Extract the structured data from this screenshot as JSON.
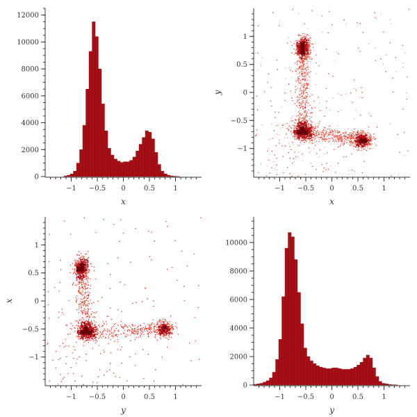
{
  "colors": {
    "hist": "#a50f15",
    "hist_edge": "#8b0a10",
    "dense": "#67000d",
    "mid": "#b30e14",
    "light": "#e0402a",
    "axis": "#333333"
  },
  "chart_data": [
    {
      "panel": "top-left",
      "type": "bar",
      "subtype": "histogram",
      "xlabel": "x",
      "ylabel": "",
      "xlim": [
        -1.5,
        1.5
      ],
      "ylim": [
        0,
        12500
      ],
      "xticks": [
        -1,
        -0.5,
        0,
        0.5,
        1
      ],
      "xtick_labels": [
        "−1",
        "−0.5",
        "0",
        "0.5",
        "1"
      ],
      "yticks": [
        0,
        2000,
        4000,
        6000,
        8000,
        10000,
        12000
      ],
      "ytick_labels": [
        "0",
        "2000",
        "4000",
        "6000",
        "8000",
        "10000",
        "12000"
      ],
      "bin_width": 0.06,
      "bins": [
        -1.14,
        -1.08,
        -1.02,
        -0.96,
        -0.9,
        -0.84,
        -0.78,
        -0.72,
        -0.66,
        -0.6,
        -0.54,
        -0.48,
        -0.42,
        -0.36,
        -0.3,
        -0.24,
        -0.18,
        -0.12,
        -0.06,
        0.0,
        0.06,
        0.12,
        0.18,
        0.24,
        0.3,
        0.36,
        0.42,
        0.48,
        0.54,
        0.6,
        0.66,
        0.72,
        0.78,
        0.84,
        0.9,
        0.96,
        1.02
      ],
      "values": [
        50,
        100,
        200,
        400,
        1000,
        2000,
        3800,
        6500,
        9300,
        11500,
        10400,
        8000,
        5400,
        3400,
        2100,
        1600,
        1300,
        1150,
        1050,
        1100,
        1100,
        1200,
        1450,
        1900,
        2400,
        2900,
        3400,
        3300,
        2800,
        1800,
        900,
        400,
        200,
        100,
        50,
        20,
        10
      ]
    },
    {
      "panel": "top-right",
      "type": "scatter",
      "subtype": "density",
      "xlabel": "x",
      "ylabel": "y",
      "xlim": [
        -1.5,
        1.5
      ],
      "ylim": [
        -1.5,
        1.5
      ],
      "xticks": [
        -1,
        -0.5,
        0,
        0.5,
        1
      ],
      "xtick_labels": [
        "−1",
        "−0.5",
        "0",
        "0.5",
        "1"
      ],
      "yticks": [
        -1,
        -0.5,
        0,
        0.5,
        1
      ],
      "ytick_labels": [
        "−1",
        "−0.5",
        "0",
        "0.5",
        "1"
      ],
      "clusters": [
        {
          "x": -0.55,
          "y": 0.8,
          "weight": 0.25
        },
        {
          "x": -0.55,
          "y": -0.7,
          "weight": 0.35
        },
        {
          "x": 0.6,
          "y": -0.85,
          "weight": 0.25
        }
      ]
    },
    {
      "panel": "bottom-left",
      "type": "scatter",
      "subtype": "density",
      "xlabel": "y",
      "ylabel": "x",
      "xlim": [
        -1.5,
        1.5
      ],
      "ylim": [
        -1.5,
        1.5
      ],
      "xticks": [
        -1,
        -0.5,
        0,
        0.5,
        1
      ],
      "xtick_labels": [
        "−1",
        "−0.5",
        "0",
        "0.5",
        "1"
      ],
      "yticks": [
        -1,
        -0.5,
        0,
        0.5,
        1
      ],
      "ytick_labels": [
        "−1",
        "−0.5",
        "0",
        "0.5",
        "1"
      ],
      "clusters": [
        {
          "x": -0.8,
          "y": 0.6,
          "weight": 0.25
        },
        {
          "x": -0.7,
          "y": -0.55,
          "weight": 0.35
        },
        {
          "x": 0.8,
          "y": -0.5,
          "weight": 0.25
        }
      ]
    },
    {
      "panel": "bottom-right",
      "type": "bar",
      "subtype": "histogram",
      "xlabel": "y",
      "ylabel": "",
      "xlim": [
        -1.5,
        1.5
      ],
      "ylim": [
        0,
        11800
      ],
      "xticks": [
        -1,
        -0.5,
        0,
        0.5,
        1
      ],
      "xtick_labels": [
        "−1",
        "−0.5",
        "0",
        "0.5",
        "1"
      ],
      "yticks": [
        0,
        2000,
        4000,
        6000,
        8000,
        10000
      ],
      "ytick_labels": [
        "0",
        "2000",
        "4000",
        "6000",
        "8000",
        "10000"
      ],
      "bin_width": 0.06,
      "bins": [
        -1.5,
        -1.44,
        -1.38,
        -1.32,
        -1.26,
        -1.2,
        -1.14,
        -1.08,
        -1.02,
        -0.96,
        -0.9,
        -0.84,
        -0.78,
        -0.72,
        -0.66,
        -0.6,
        -0.54,
        -0.48,
        -0.42,
        -0.36,
        -0.3,
        -0.24,
        -0.18,
        -0.12,
        -0.06,
        0.0,
        0.06,
        0.12,
        0.18,
        0.24,
        0.3,
        0.36,
        0.42,
        0.48,
        0.54,
        0.6,
        0.66,
        0.72,
        0.78,
        0.84,
        0.9,
        0.96,
        1.02,
        1.08,
        1.14,
        1.2
      ],
      "values": [
        50,
        80,
        120,
        200,
        300,
        500,
        900,
        1800,
        3200,
        6200,
        9600,
        10700,
        10400,
        8800,
        6500,
        4300,
        2600,
        2000,
        1700,
        1500,
        1350,
        1250,
        1200,
        1150,
        1150,
        1200,
        1200,
        1150,
        1100,
        1100,
        1100,
        1150,
        1250,
        1400,
        1600,
        1900,
        2100,
        1900,
        1200,
        600,
        250,
        120,
        80,
        40,
        20,
        10
      ]
    }
  ]
}
